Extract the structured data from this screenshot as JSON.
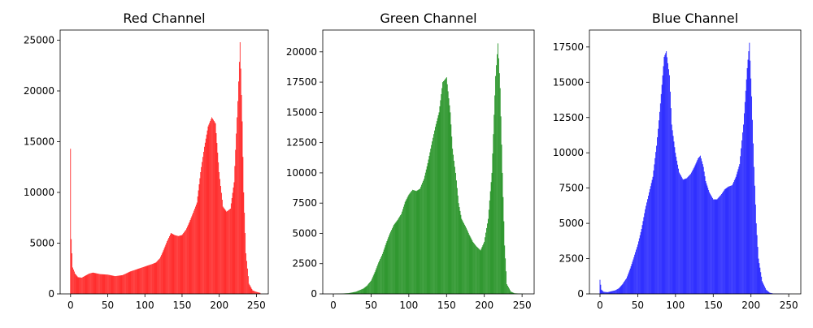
{
  "chart_data": [
    {
      "type": "bar",
      "title": "Red Channel",
      "color": "#ff0000",
      "xlabel": "",
      "ylabel": "",
      "xlim": [
        -14,
        266
      ],
      "ylim": [
        0,
        26000
      ],
      "xticks": [
        0,
        50,
        100,
        150,
        200,
        250
      ],
      "yticks": [
        0,
        5000,
        10000,
        15000,
        20000,
        25000
      ],
      "keypoints": [
        [
          0,
          14300
        ],
        [
          1,
          5400
        ],
        [
          3,
          2600
        ],
        [
          6,
          2000
        ],
        [
          10,
          1650
        ],
        [
          15,
          1600
        ],
        [
          20,
          1800
        ],
        [
          25,
          2000
        ],
        [
          30,
          2100
        ],
        [
          40,
          1950
        ],
        [
          50,
          1900
        ],
        [
          60,
          1750
        ],
        [
          70,
          1850
        ],
        [
          80,
          2200
        ],
        [
          90,
          2450
        ],
        [
          100,
          2700
        ],
        [
          110,
          2950
        ],
        [
          115,
          3100
        ],
        [
          120,
          3500
        ],
        [
          125,
          4300
        ],
        [
          130,
          5200
        ],
        [
          135,
          6000
        ],
        [
          140,
          5800
        ],
        [
          145,
          5700
        ],
        [
          150,
          5800
        ],
        [
          155,
          6300
        ],
        [
          160,
          7100
        ],
        [
          165,
          8000
        ],
        [
          170,
          9000
        ],
        [
          175,
          12000
        ],
        [
          180,
          14500
        ],
        [
          185,
          16500
        ],
        [
          190,
          17400
        ],
        [
          195,
          16800
        ],
        [
          200,
          12000
        ],
        [
          205,
          8600
        ],
        [
          210,
          8100
        ],
        [
          215,
          8400
        ],
        [
          220,
          11000
        ],
        [
          225,
          19000
        ],
        [
          228,
          24800
        ],
        [
          231,
          17000
        ],
        [
          233,
          10000
        ],
        [
          236,
          4000
        ],
        [
          240,
          1000
        ],
        [
          245,
          350
        ],
        [
          250,
          200
        ],
        [
          255,
          100
        ]
      ]
    },
    {
      "type": "bar",
      "title": "Green Channel",
      "color": "#008000",
      "xlabel": "",
      "ylabel": "",
      "xlim": [
        -14,
        266
      ],
      "ylim": [
        0,
        21800
      ],
      "xticks": [
        0,
        50,
        100,
        150,
        200,
        250
      ],
      "yticks": [
        0,
        2500,
        5000,
        7500,
        10000,
        12500,
        15000,
        17500,
        20000
      ],
      "keypoints": [
        [
          0,
          0
        ],
        [
          10,
          20
        ],
        [
          20,
          60
        ],
        [
          30,
          180
        ],
        [
          40,
          450
        ],
        [
          45,
          700
        ],
        [
          50,
          1100
        ],
        [
          55,
          1800
        ],
        [
          60,
          2600
        ],
        [
          65,
          3300
        ],
        [
          70,
          4200
        ],
        [
          75,
          5000
        ],
        [
          80,
          5700
        ],
        [
          85,
          6100
        ],
        [
          90,
          6600
        ],
        [
          95,
          7600
        ],
        [
          100,
          8200
        ],
        [
          105,
          8600
        ],
        [
          110,
          8500
        ],
        [
          115,
          8700
        ],
        [
          120,
          9500
        ],
        [
          125,
          10800
        ],
        [
          130,
          12300
        ],
        [
          135,
          13800
        ],
        [
          140,
          15000
        ],
        [
          145,
          17500
        ],
        [
          150,
          17900
        ],
        [
          155,
          15000
        ],
        [
          158,
          12000
        ],
        [
          162,
          10000
        ],
        [
          166,
          7500
        ],
        [
          170,
          6200
        ],
        [
          175,
          5600
        ],
        [
          180,
          4900
        ],
        [
          185,
          4300
        ],
        [
          190,
          3900
        ],
        [
          195,
          3600
        ],
        [
          200,
          4300
        ],
        [
          205,
          6200
        ],
        [
          210,
          10000
        ],
        [
          215,
          18000
        ],
        [
          218,
          20700
        ],
        [
          221,
          17000
        ],
        [
          224,
          10000
        ],
        [
          227,
          4000
        ],
        [
          230,
          800
        ],
        [
          235,
          200
        ],
        [
          240,
          50
        ],
        [
          255,
          0
        ]
      ]
    },
    {
      "type": "bar",
      "title": "Blue Channel",
      "color": "#0000ff",
      "xlabel": "",
      "ylabel": "",
      "xlim": [
        -14,
        266
      ],
      "ylim": [
        0,
        18700
      ],
      "xticks": [
        0,
        50,
        100,
        150,
        200,
        250
      ],
      "yticks": [
        0,
        2500,
        5000,
        7500,
        10000,
        12500,
        15000,
        17500
      ],
      "keypoints": [
        [
          0,
          1000
        ],
        [
          2,
          300
        ],
        [
          5,
          150
        ],
        [
          10,
          120
        ],
        [
          20,
          250
        ],
        [
          25,
          400
        ],
        [
          30,
          700
        ],
        [
          35,
          1100
        ],
        [
          40,
          1800
        ],
        [
          45,
          2600
        ],
        [
          50,
          3500
        ],
        [
          55,
          4600
        ],
        [
          60,
          6000
        ],
        [
          65,
          7200
        ],
        [
          70,
          8300
        ],
        [
          75,
          10500
        ],
        [
          80,
          13500
        ],
        [
          85,
          16800
        ],
        [
          88,
          17200
        ],
        [
          92,
          15500
        ],
        [
          95,
          12000
        ],
        [
          100,
          10000
        ],
        [
          105,
          8600
        ],
        [
          110,
          8100
        ],
        [
          115,
          8200
        ],
        [
          120,
          8500
        ],
        [
          125,
          9000
        ],
        [
          130,
          9600
        ],
        [
          133,
          9800
        ],
        [
          137,
          9000
        ],
        [
          140,
          8000
        ],
        [
          145,
          7200
        ],
        [
          150,
          6700
        ],
        [
          155,
          6700
        ],
        [
          160,
          7000
        ],
        [
          165,
          7400
        ],
        [
          170,
          7600
        ],
        [
          175,
          7700
        ],
        [
          180,
          8300
        ],
        [
          185,
          9200
        ],
        [
          190,
          12000
        ],
        [
          195,
          16000
        ],
        [
          198,
          17800
        ],
        [
          201,
          14000
        ],
        [
          204,
          9000
        ],
        [
          207,
          5000
        ],
        [
          210,
          2500
        ],
        [
          215,
          900
        ],
        [
          220,
          300
        ],
        [
          225,
          80
        ],
        [
          230,
          20
        ],
        [
          255,
          0
        ]
      ]
    }
  ]
}
